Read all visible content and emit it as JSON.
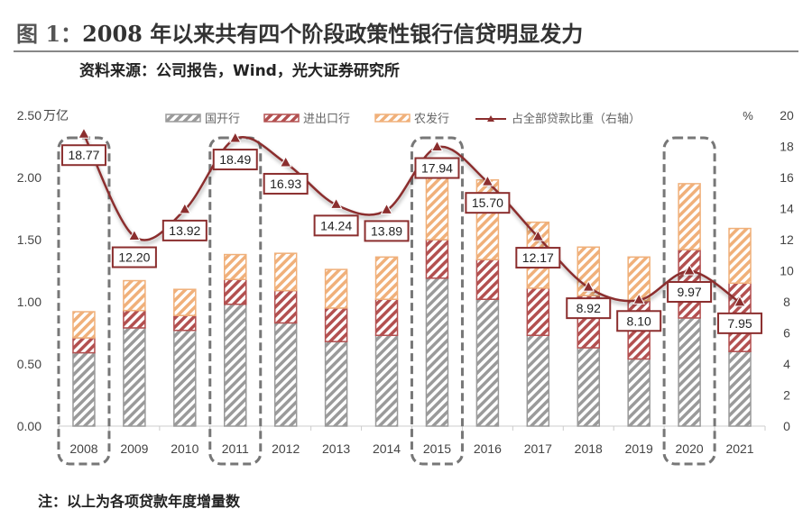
{
  "header": {
    "figure_label": "图 1：",
    "title": "2008 年以来共有四个阶段政策性银行信贷明显发力",
    "source": "资料来源：公司报告，Wind，光大证券研究所"
  },
  "footer": {
    "note": "注：以上为各项贷款年度增量数"
  },
  "colors": {
    "cdb": "#9a9a9a",
    "exim": "#b35050",
    "adbc": "#f0b07a",
    "line": "#8b2e2e",
    "box": "#777777"
  },
  "chart_data": {
    "type": "bar",
    "stacked": true,
    "categories": [
      "2008",
      "2009",
      "2010",
      "2011",
      "2012",
      "2013",
      "2014",
      "2015",
      "2016",
      "2017",
      "2018",
      "2019",
      "2020",
      "2021"
    ],
    "left_axis": {
      "unit": "万亿",
      "ylim": [
        0,
        2.5
      ],
      "ticks": [
        "0.00",
        "0.50",
        "1.00",
        "1.50",
        "2.00",
        "2.50"
      ]
    },
    "right_axis": {
      "unit": "%",
      "ylim": [
        0,
        20
      ],
      "ticks": [
        "0",
        "2",
        "4",
        "6",
        "8",
        "10",
        "12",
        "14",
        "16",
        "18",
        "20"
      ]
    },
    "series": [
      {
        "name": "国开行",
        "type": "bar",
        "values": [
          0.59,
          0.79,
          0.77,
          0.98,
          0.83,
          0.68,
          0.73,
          1.19,
          1.02,
          0.73,
          0.63,
          0.54,
          0.87,
          0.6
        ]
      },
      {
        "name": "进出口行",
        "type": "bar",
        "values": [
          0.12,
          0.14,
          0.12,
          0.2,
          0.26,
          0.27,
          0.29,
          0.31,
          0.32,
          0.38,
          0.42,
          0.47,
          0.55,
          0.55
        ]
      },
      {
        "name": "农发行",
        "type": "bar",
        "values": [
          0.21,
          0.24,
          0.21,
          0.2,
          0.3,
          0.31,
          0.34,
          0.5,
          0.64,
          0.53,
          0.39,
          0.35,
          0.53,
          0.44
        ]
      },
      {
        "name": "占全部贷款比重（右轴）",
        "type": "line",
        "axis": "right",
        "values": [
          18.77,
          12.2,
          13.92,
          18.49,
          16.93,
          14.24,
          13.89,
          17.94,
          15.7,
          12.17,
          8.92,
          8.1,
          9.97,
          7.95
        ],
        "labels": [
          "18.77",
          "12.20",
          "13.92",
          "18.49",
          "16.93",
          "14.24",
          "13.89",
          "17.94",
          "15.70",
          "12.17",
          "8.92",
          "8.10",
          "9.97",
          "7.95"
        ]
      }
    ],
    "highlighted_years": [
      "2008",
      "2011",
      "2015",
      "2020"
    ],
    "legend": "top",
    "grid": false
  }
}
